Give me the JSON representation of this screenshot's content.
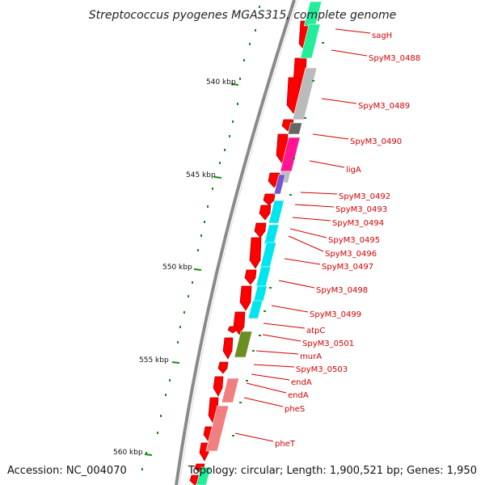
{
  "title": "Streptococcus pyogenes MGAS315, complete genome",
  "accession": "Accession: NC_004070",
  "topology": "Topology: circular; Length: 1,900,521 bp; Genes: 1,950",
  "kbp_labels": [
    "540 kbp",
    "545 kbp",
    "550 kbp",
    "555 kbp",
    "560 kbp"
  ],
  "gene_labels": [
    "sagH",
    "SpyM3_0488",
    "SpyM3_0489",
    "SpyM3_0490",
    "ligA",
    "SpyM3_0492",
    "SpyM3_0493",
    "SpyM3_0494",
    "SpyM3_0495",
    "SpyM3_0496",
    "SpyM3_0497",
    "SpyM3_0498",
    "SpyM3_0499",
    "atpC",
    "SpyM3_0501",
    "murA",
    "SpyM3_0503",
    "endA",
    "endA",
    "pheS",
    "pheT"
  ],
  "colors": {
    "label_red": "#d40000",
    "tick_green": "#1a8a1a",
    "backbone": "#8a8a8a",
    "strand_red": "#ff0000",
    "cog_green": "#22ee99",
    "cog_gray": "#bbbbbb",
    "cog_darkgray": "#666666",
    "cog_pink": "#ff1493",
    "cog_purple": "#7755cc",
    "cog_cyan": "#00e5ee",
    "cog_olive": "#6b8e23",
    "cog_salmon": "#f08080"
  }
}
